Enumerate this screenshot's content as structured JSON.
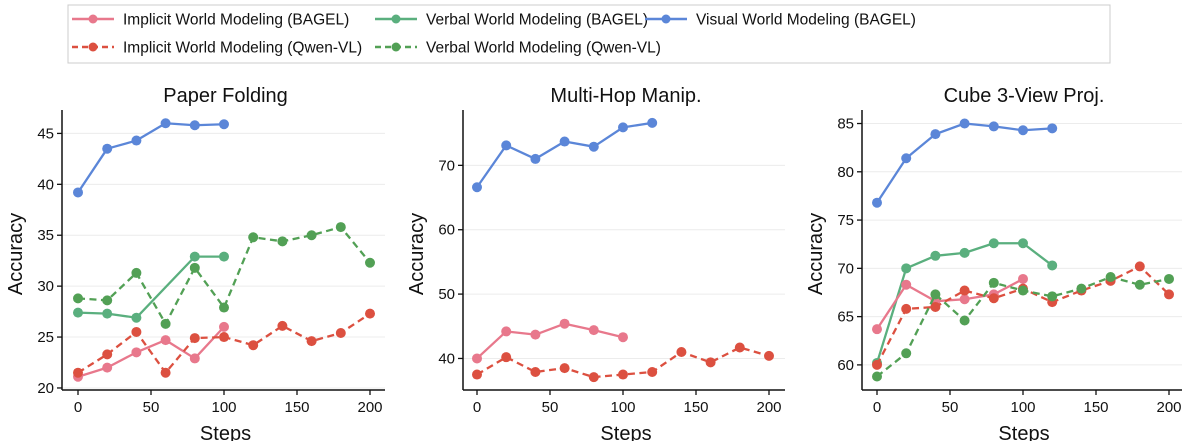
{
  "chart_data": [
    {
      "type": "line",
      "title": "Paper Folding",
      "xlabel": "Steps",
      "ylabel": "Accuracy",
      "xlim": [
        -11,
        210
      ],
      "ylim": [
        19.8,
        47.3
      ],
      "xticks": [
        0,
        50,
        100,
        150,
        200
      ],
      "yticks": [
        20,
        25,
        30,
        35,
        40,
        45
      ],
      "grid": "horizontal",
      "series": [
        {
          "key": "visual_bagel",
          "x": [
            0,
            20,
            40,
            60,
            80,
            100
          ],
          "y": [
            39.2,
            43.5,
            44.3,
            46.0,
            45.8,
            45.9
          ]
        },
        {
          "key": "verbal_bagel",
          "x": [
            0,
            20,
            40,
            80,
            100
          ],
          "y": [
            27.4,
            27.3,
            26.9,
            32.9,
            32.9
          ]
        },
        {
          "key": "verbal_qwen",
          "x": [
            0,
            20,
            40,
            60,
            80,
            100,
            120,
            140,
            160,
            180,
            200
          ],
          "y": [
            28.8,
            28.6,
            31.3,
            26.3,
            31.8,
            27.9,
            34.8,
            34.4,
            35.0,
            35.8,
            32.3
          ]
        },
        {
          "key": "implicit_bagel",
          "x": [
            0,
            20,
            40,
            60,
            80,
            100
          ],
          "y": [
            21.1,
            22.0,
            23.5,
            24.7,
            22.9,
            26.0
          ]
        },
        {
          "key": "implicit_qwen",
          "x": [
            0,
            20,
            40,
            60,
            80,
            100,
            120,
            140,
            160,
            180,
            200
          ],
          "y": [
            21.5,
            23.3,
            25.5,
            21.5,
            24.9,
            25.0,
            24.2,
            26.1,
            24.6,
            25.4,
            27.3
          ]
        }
      ]
    },
    {
      "type": "line",
      "title": "Multi-Hop Manip.",
      "xlabel": "Steps",
      "ylabel": "Accuracy",
      "xlim": [
        -11,
        210
      ],
      "ylim": [
        35.1,
        78.6
      ],
      "xticks": [
        0,
        50,
        100,
        150,
        200
      ],
      "yticks": [
        40,
        50,
        60,
        70
      ],
      "grid": "horizontal",
      "series": [
        {
          "key": "visual_bagel",
          "x": [
            0,
            20,
            40,
            60,
            80,
            100,
            120
          ],
          "y": [
            66.6,
            73.1,
            71.0,
            73.7,
            72.9,
            75.9,
            76.6
          ]
        },
        {
          "key": "implicit_bagel",
          "x": [
            0,
            20,
            40,
            60,
            80,
            100
          ],
          "y": [
            40.0,
            44.2,
            43.7,
            45.4,
            44.4,
            43.3
          ]
        },
        {
          "key": "implicit_qwen",
          "x": [
            0,
            20,
            40,
            60,
            80,
            100,
            120,
            140,
            160,
            180,
            200
          ],
          "y": [
            37.5,
            40.2,
            37.9,
            38.5,
            37.1,
            37.5,
            37.9,
            41.0,
            39.4,
            41.7,
            40.4
          ]
        }
      ]
    },
    {
      "type": "line",
      "title": "Cube 3-View Proj.",
      "xlabel": "Steps",
      "ylabel": "Accuracy",
      "xlim": [
        -11,
        210
      ],
      "ylim": [
        57.4,
        86.4
      ],
      "xticks": [
        0,
        50,
        100,
        150,
        200
      ],
      "yticks": [
        60,
        65,
        70,
        75,
        80,
        85
      ],
      "grid": "horizontal",
      "series": [
        {
          "key": "visual_bagel",
          "x": [
            0,
            20,
            40,
            60,
            80,
            100,
            120
          ],
          "y": [
            76.8,
            81.4,
            83.9,
            85.0,
            84.7,
            84.3,
            84.5
          ]
        },
        {
          "key": "verbal_bagel",
          "x": [
            0,
            20,
            40,
            60,
            80,
            100,
            120
          ],
          "y": [
            60.2,
            70.0,
            71.3,
            71.6,
            72.6,
            72.6,
            70.3
          ]
        },
        {
          "key": "implicit_bagel",
          "x": [
            0,
            20,
            40,
            60,
            80,
            100
          ],
          "y": [
            63.7,
            68.3,
            66.6,
            66.8,
            67.3,
            68.9
          ]
        },
        {
          "key": "implicit_qwen",
          "x": [
            0,
            20,
            40,
            60,
            80,
            100,
            120,
            140,
            160,
            180,
            200
          ],
          "y": [
            60.0,
            65.8,
            66.0,
            67.7,
            66.9,
            67.9,
            66.5,
            67.7,
            68.7,
            70.2,
            67.3
          ]
        },
        {
          "key": "verbal_qwen",
          "x": [
            0,
            20,
            40,
            60,
            80,
            100,
            120,
            140,
            160,
            180,
            200
          ],
          "y": [
            58.8,
            61.2,
            67.3,
            64.6,
            68.5,
            67.7,
            67.1,
            67.9,
            69.1,
            68.3,
            68.9
          ]
        }
      ]
    }
  ],
  "legend": {
    "placement": "top",
    "items": [
      {
        "key": "implicit_bagel",
        "name": "Implicit World Modeling (BAGEL)",
        "color": "#e8788c",
        "dashed": false
      },
      {
        "key": "implicit_qwen",
        "name": "Implicit World Modeling (Qwen-VL)",
        "color": "#dc5040",
        "dashed": true
      },
      {
        "key": "verbal_bagel",
        "name": "Verbal World Modeling (BAGEL)",
        "color": "#5aaf7e",
        "dashed": false
      },
      {
        "key": "verbal_qwen",
        "name": "Verbal World Modeling (Qwen-VL)",
        "color": "#52a055",
        "dashed": true
      },
      {
        "key": "visual_bagel",
        "name": "Visual World Modeling (BAGEL)",
        "color": "#5b86d8",
        "dashed": false
      }
    ]
  }
}
